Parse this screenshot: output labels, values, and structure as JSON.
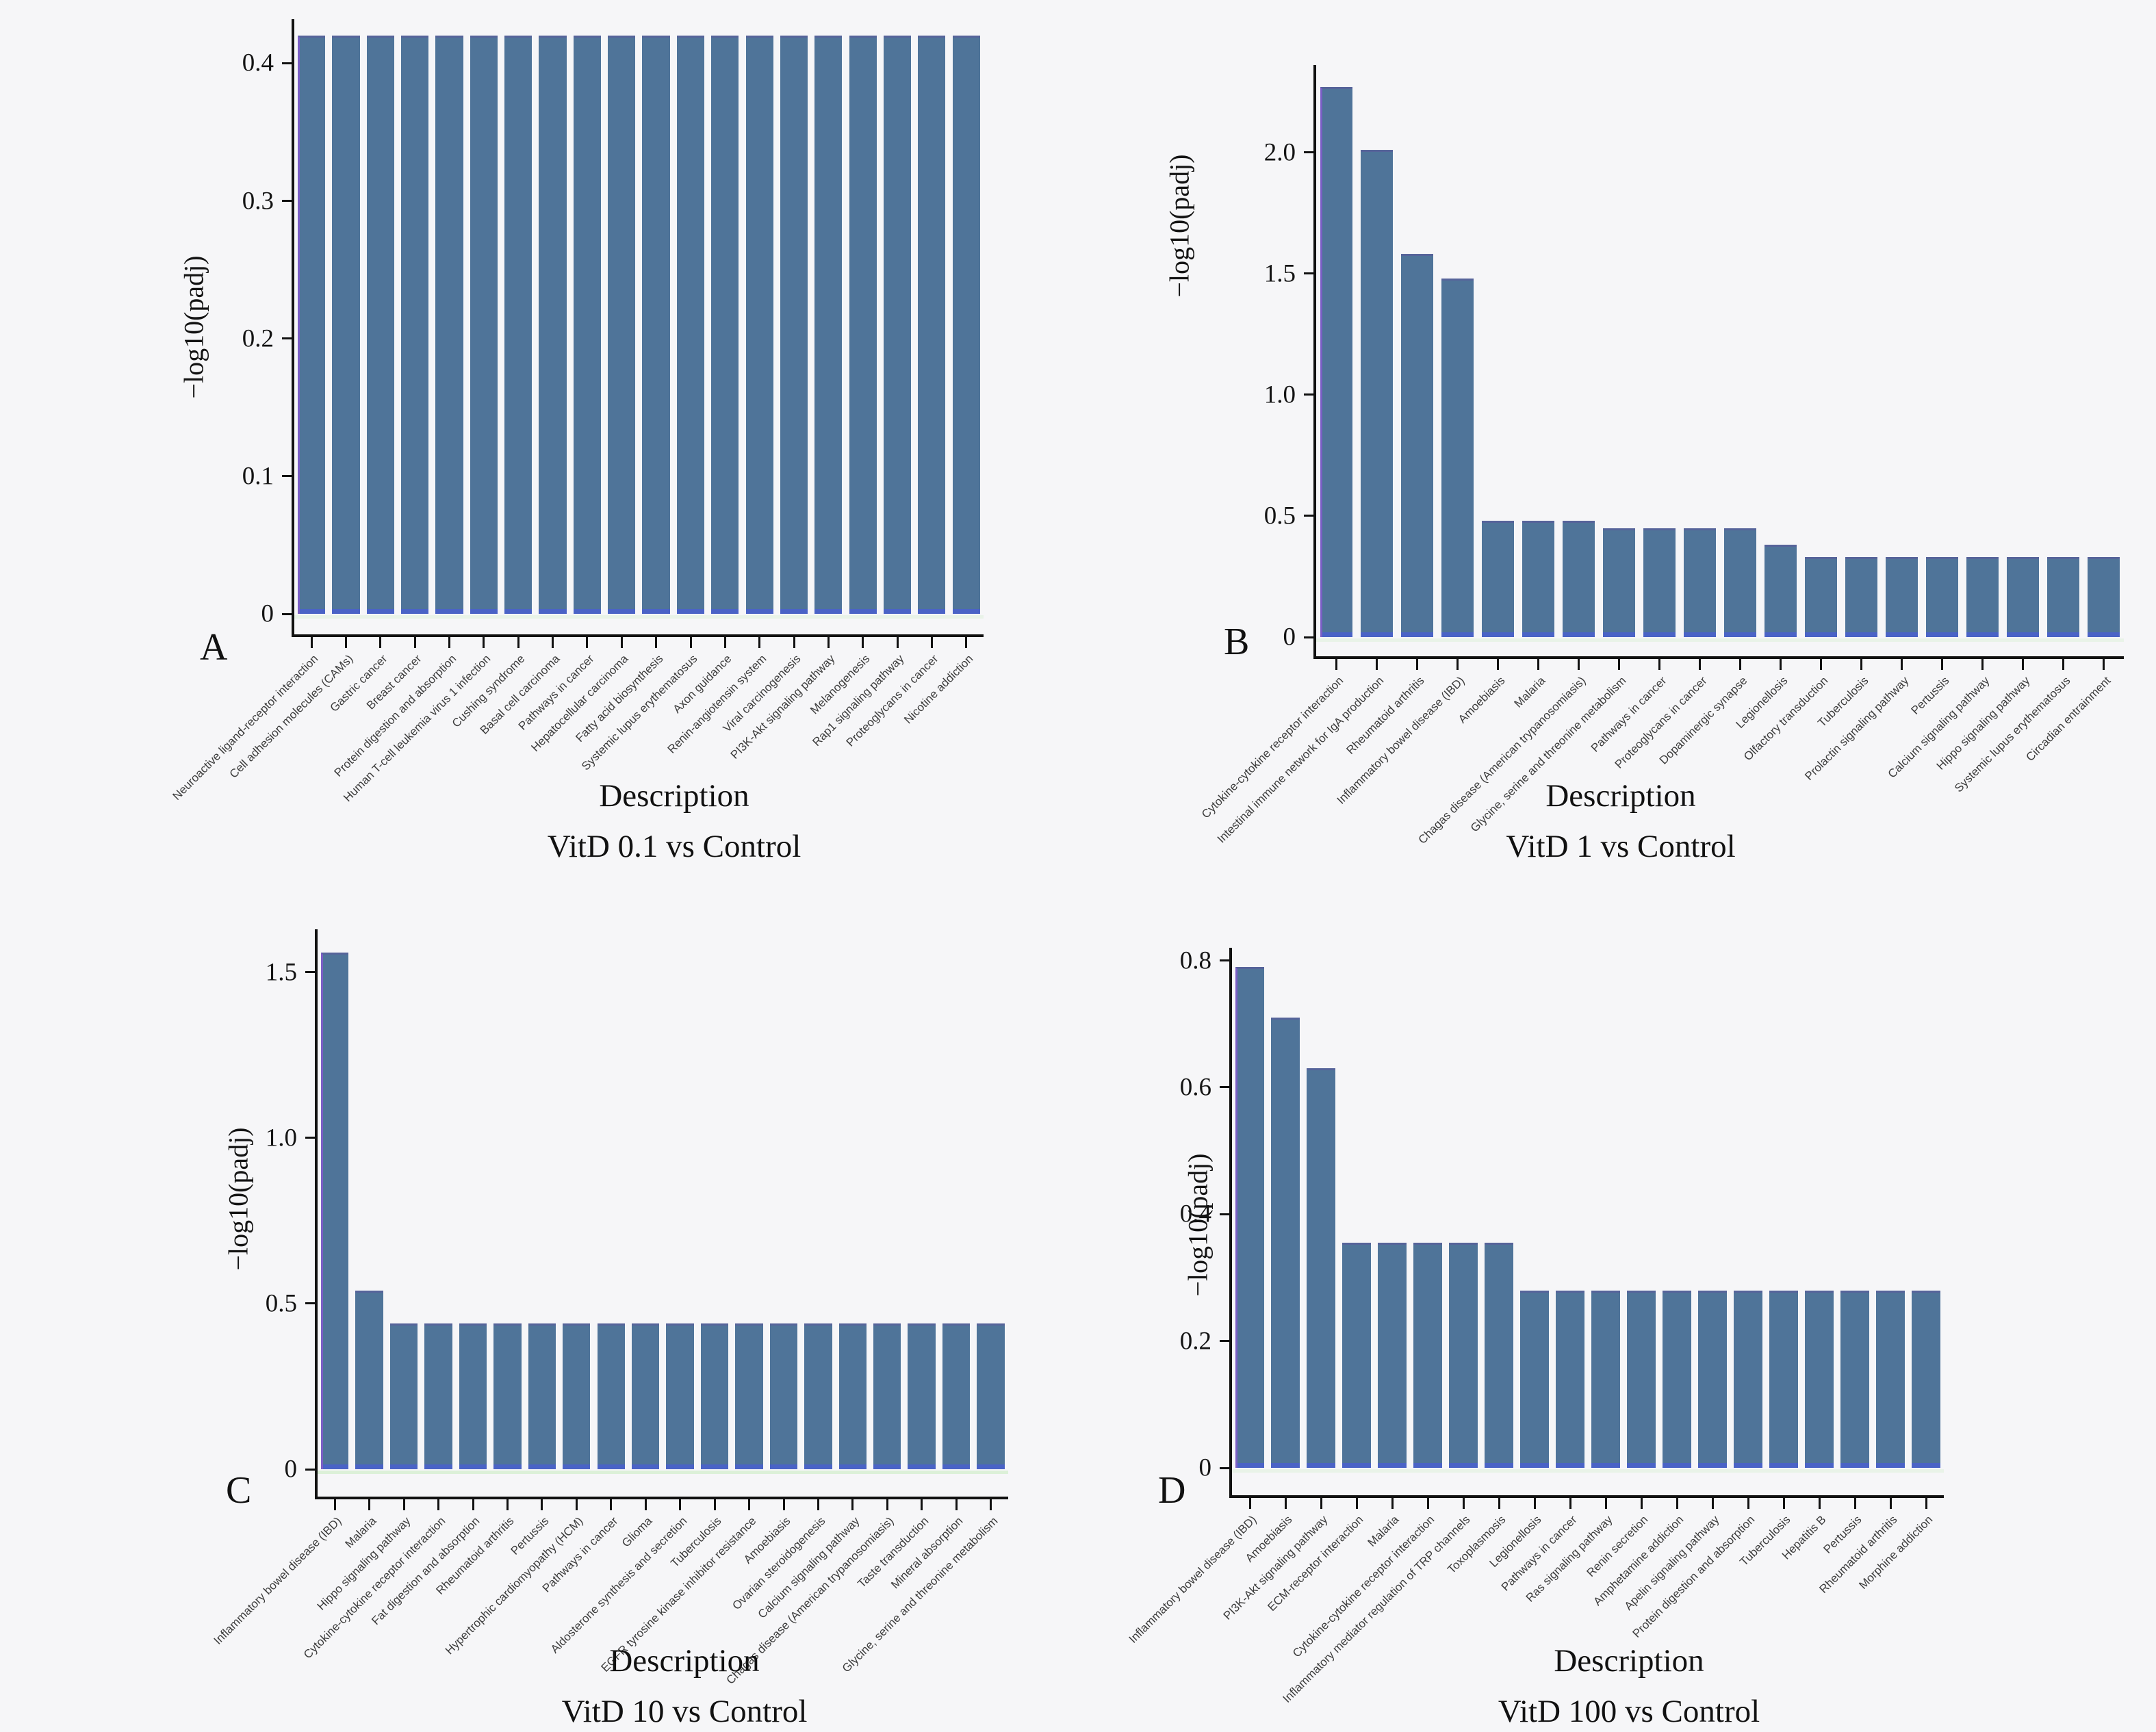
{
  "figure": {
    "background": "#f6f6f8",
    "bar_color": "#4f7499",
    "bar_base_strip_color": "#4a63c6",
    "bar_cap_color": "#56649a",
    "first_bar_edge_color": "#7b5fc5",
    "under_axis_strip_color": "#d9efd4",
    "axis_color": "#111111",
    "panel_letters": [
      "A",
      "B",
      "C",
      "D"
    ]
  },
  "chart_data": [
    {
      "type": "bar",
      "panel_letter": "A",
      "title": "Description",
      "subtitle": "VitD 0.1 vs Control",
      "xlabel": "Description",
      "ylabel": "−log10(padj)",
      "ytick_values": [
        0,
        0.1,
        0.2,
        0.3,
        0.4
      ],
      "ytick_labels": [
        "0",
        "0.1",
        "0.2",
        "0.3",
        "0.4"
      ],
      "ylim": [
        0,
        0.432
      ],
      "grid": false,
      "legend": "none",
      "categories": [
        "Neuroactive ligand-receptor interaction",
        "Cell adhesion molecules (CAMs)",
        "Gastric cancer",
        "Breast cancer",
        "Protein digestion and absorption",
        "Human T-cell leukemia virus 1 infection",
        "Cushing syndrome",
        "Basal cell carcinoma",
        "Pathways in cancer",
        "Hepatocellular carcinoma",
        "Fatty acid biosynthesis",
        "Systemic lupus erythematosus",
        "Axon guidance",
        "Renin-angiotensin system",
        "Viral carcinogenesis",
        "PI3K-Akt signaling pathway",
        "Melanogenesis",
        "Rap1 signaling pathway",
        "Proteoglycans in cancer",
        "Nicotine addiction"
      ],
      "values": [
        0.42,
        0.42,
        0.42,
        0.42,
        0.42,
        0.42,
        0.42,
        0.42,
        0.42,
        0.42,
        0.42,
        0.42,
        0.42,
        0.42,
        0.42,
        0.42,
        0.42,
        0.42,
        0.42,
        0.42
      ]
    },
    {
      "type": "bar",
      "panel_letter": "B",
      "title": "Description",
      "subtitle": "VitD 1 vs Control",
      "xlabel": "Description",
      "ylabel": "−log10(padj)",
      "ytick_values": [
        0,
        0.5,
        1.0,
        1.5,
        2.0
      ],
      "ytick_labels": [
        "0",
        "0.5",
        "1.0",
        "1.5",
        "2.0"
      ],
      "ylim": [
        0,
        2.36
      ],
      "grid": false,
      "legend": "none",
      "categories": [
        "Cytokine-cytokine receptor interaction",
        "Intestinal immune network for IgA production",
        "Rheumatoid arthritis",
        "Inflammatory bowel disease (IBD)",
        "Amoebiasis",
        "Malaria",
        "Chagas disease (American trypanosomiasis)",
        "Glycine, serine and threonine metabolism",
        "Pathways in cancer",
        "Proteoglycans in cancer",
        "Dopaminergic synapse",
        "Legionellosis",
        "Olfactory transduction",
        "Tuberculosis",
        "Prolactin signaling pathway",
        "Pertussis",
        "Calcium signaling pathway",
        "Hippo signaling pathway",
        "Systemic lupus erythematosus",
        "Circadian entrainment"
      ],
      "values": [
        2.27,
        2.01,
        1.58,
        1.48,
        0.48,
        0.48,
        0.48,
        0.45,
        0.45,
        0.45,
        0.45,
        0.38,
        0.33,
        0.33,
        0.33,
        0.33,
        0.33,
        0.33,
        0.33,
        0.33
      ]
    },
    {
      "type": "bar",
      "panel_letter": "C",
      "title": "Description",
      "subtitle": "VitD 10 vs Control",
      "xlabel": "Description",
      "ylabel": "−log10(padj)",
      "ytick_values": [
        0,
        0.5,
        1.0,
        1.5
      ],
      "ytick_labels": [
        "0",
        "0.5",
        "1.0",
        "1.5"
      ],
      "ylim": [
        0,
        1.63
      ],
      "grid": false,
      "legend": "none",
      "categories": [
        "Inflammatory bowel disease (IBD)",
        "Malaria",
        "Hippo signaling pathway",
        "Cytokine-cytokine receptor interaction",
        "Fat digestion and absorption",
        "Rheumatoid arthritis",
        "Pertussis",
        "Hypertrophic cardiomyopathy (HCM)",
        "Pathways in cancer",
        "Glioma",
        "Aldosterone synthesis and secretion",
        "Tuberculosis",
        "EGFR tyrosine kinase inhibitor resistance",
        "Amoebiasis",
        "Ovarian steroidogenesis",
        "Calcium signaling pathway",
        "Chagas disease (American trypanosomiasis)",
        "Taste transduction",
        "Mineral absorption",
        "Glycine, serine and threonine metabolism"
      ],
      "values": [
        1.56,
        0.54,
        0.44,
        0.44,
        0.44,
        0.44,
        0.44,
        0.44,
        0.44,
        0.44,
        0.44,
        0.44,
        0.44,
        0.44,
        0.44,
        0.44,
        0.44,
        0.44,
        0.44,
        0.44
      ]
    },
    {
      "type": "bar",
      "panel_letter": "D",
      "title": "Description",
      "subtitle": "VitD 100 vs Control",
      "xlabel": "Description",
      "ylabel": "−log10(padj)",
      "ytick_values": [
        0,
        0.2,
        0.4,
        0.6,
        0.8
      ],
      "ytick_labels": [
        "0",
        "0.2",
        "0.4",
        "0.6",
        "0.8"
      ],
      "ylim": [
        0,
        0.82
      ],
      "grid": false,
      "legend": "none",
      "categories": [
        "Inflammatory bowel disease (IBD)",
        "Amoebiasis",
        "PI3K-Akt signaling pathway",
        "ECM-receptor interaction",
        "Malaria",
        "Cytokine-cytokine receptor interaction",
        "Inflammatory mediator regulation of TRP channels",
        "Toxoplasmosis",
        "Legionellosis",
        "Pathways in cancer",
        "Ras signaling pathway",
        "Renin secretion",
        "Amphetamine addiction",
        "Apelin signaling pathway",
        "Protein digestion and absorption",
        "Tuberculosis",
        "Hepatitis B",
        "Pertussis",
        "Rheumatoid arthritis",
        "Morphine addiction"
      ],
      "values": [
        0.79,
        0.71,
        0.63,
        0.355,
        0.355,
        0.355,
        0.355,
        0.355,
        0.28,
        0.28,
        0.28,
        0.28,
        0.28,
        0.28,
        0.28,
        0.28,
        0.28,
        0.28,
        0.28,
        0.28
      ]
    }
  ]
}
